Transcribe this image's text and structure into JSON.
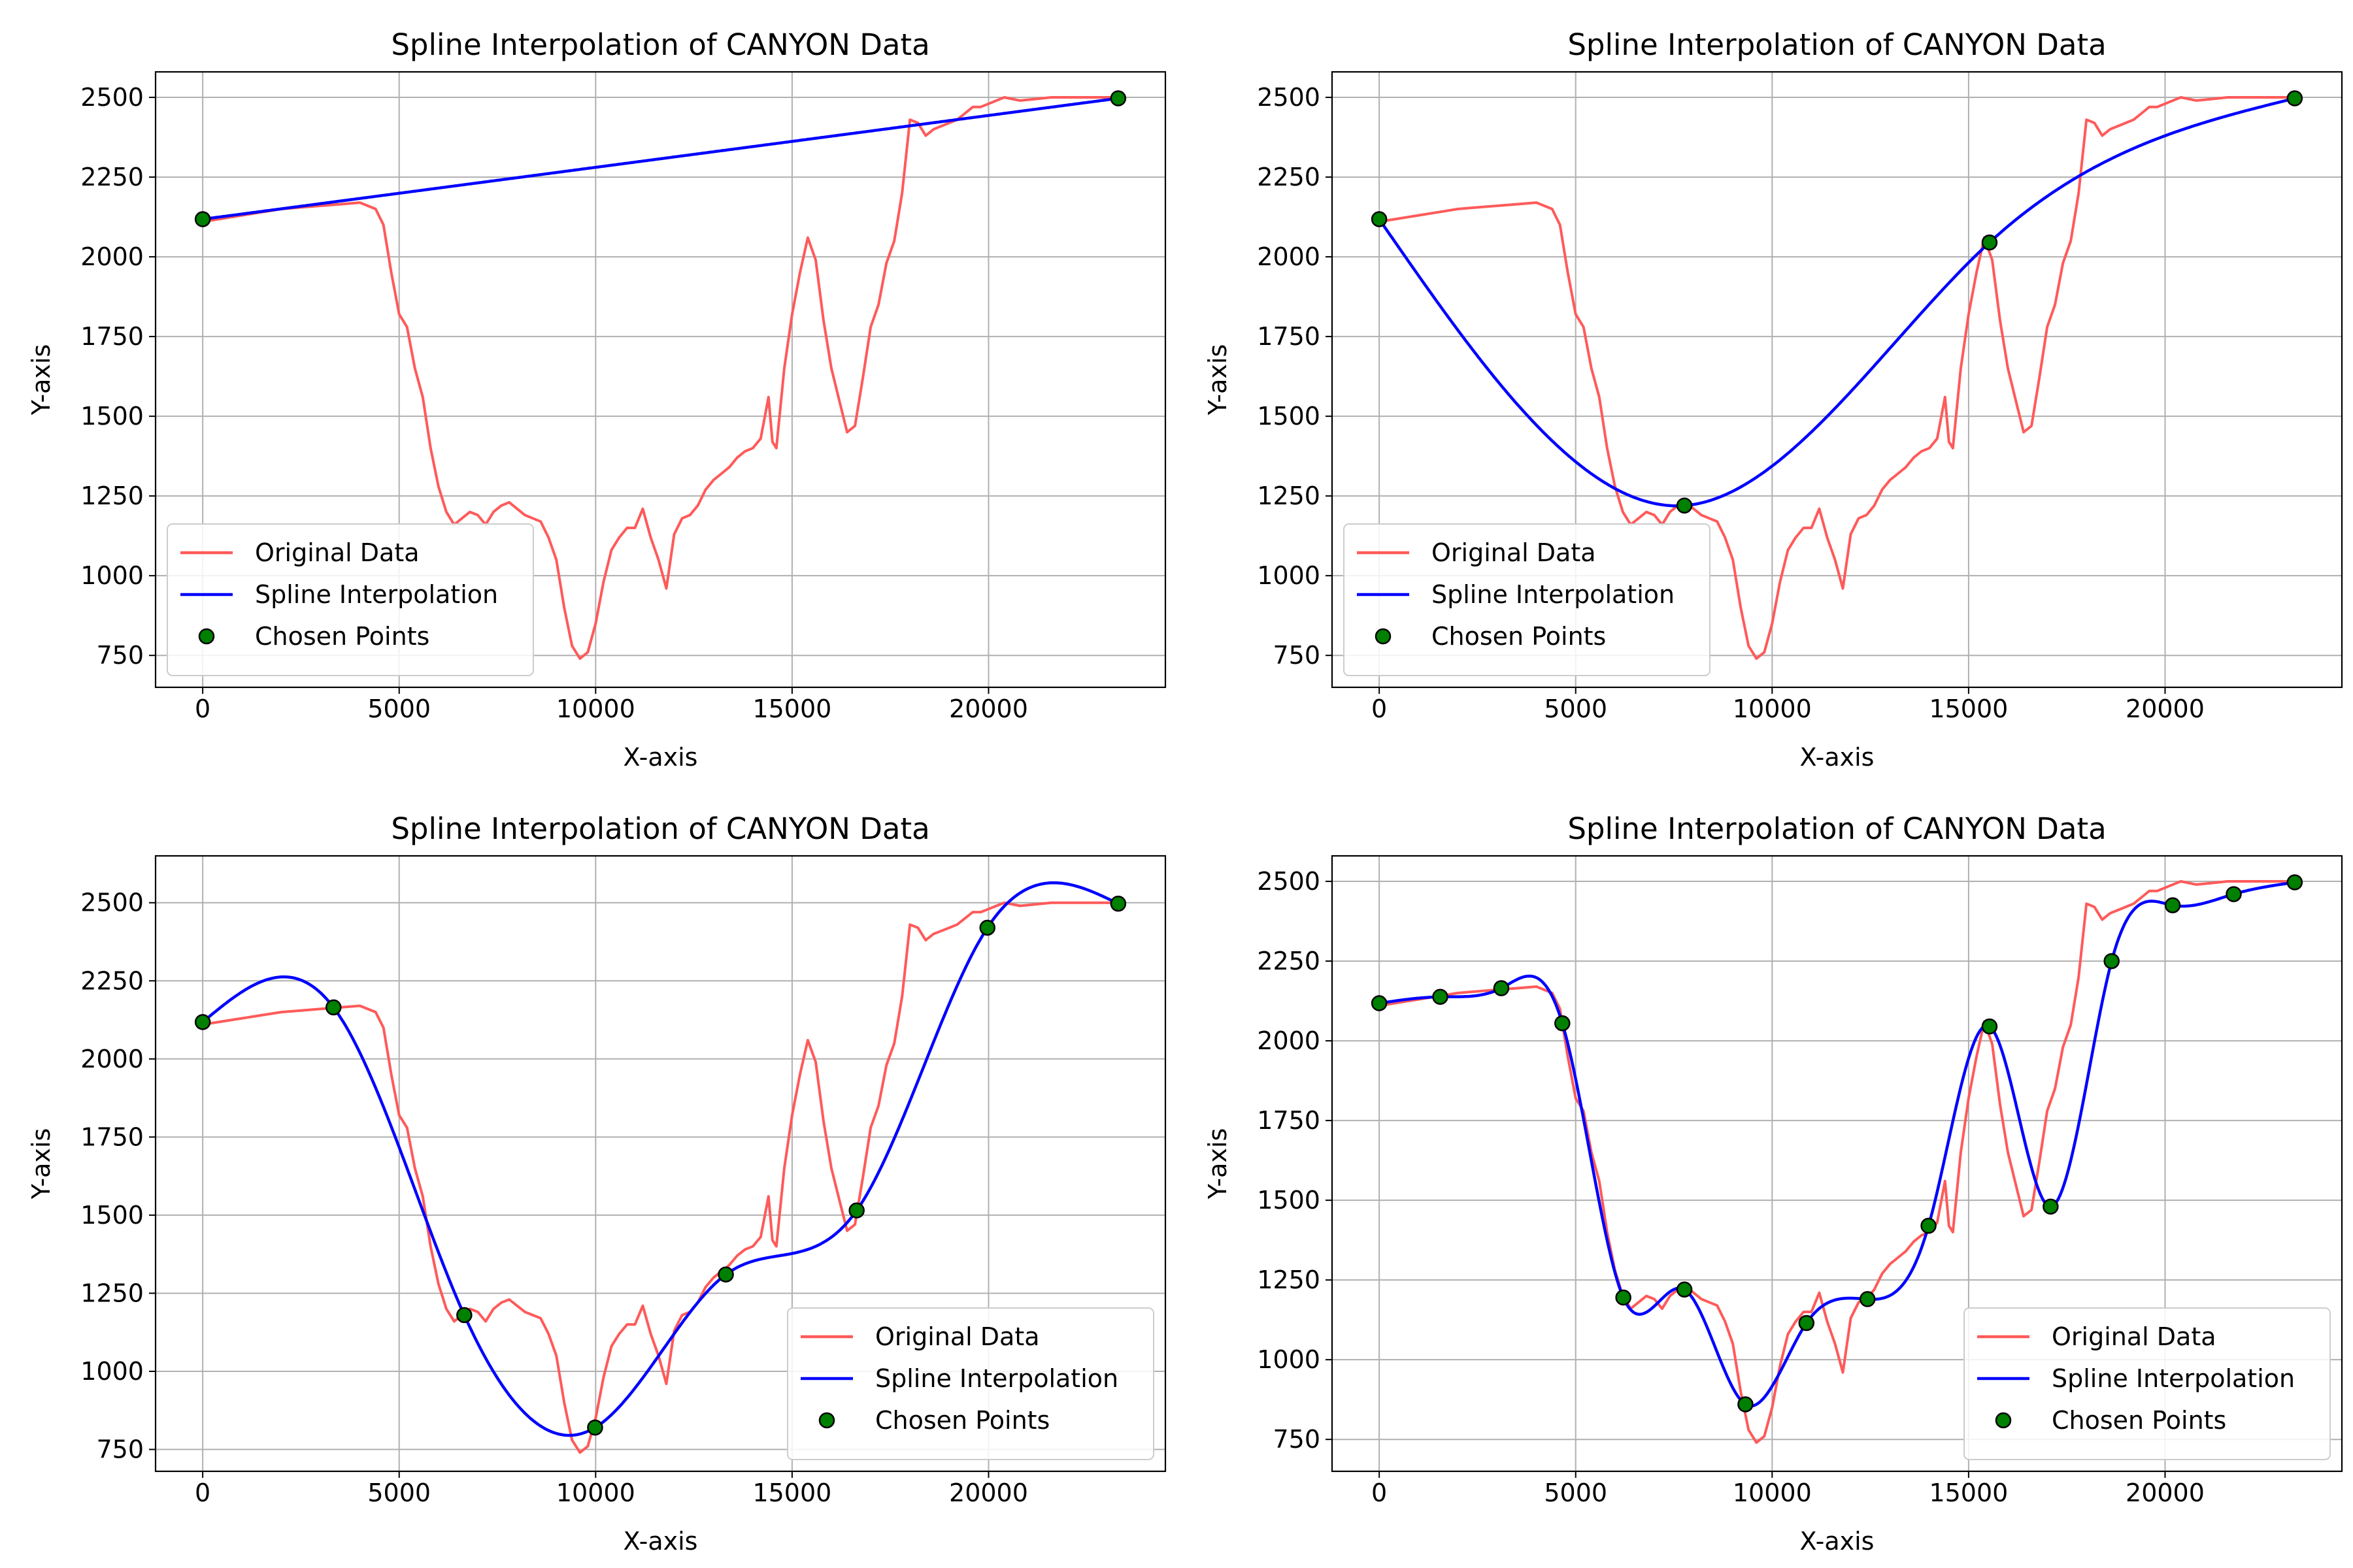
{
  "figure_title": "",
  "colors": {
    "original": "#ff5a5a",
    "spline": "#0000ff",
    "points_fill": "#008000",
    "points_edge": "#000000",
    "grid": "#b0b0b0"
  },
  "legend_labels": [
    "Original Data",
    "Spline Interpolation",
    "Chosen Points"
  ],
  "original_data": {
    "name": "Original Data",
    "x": [
      0,
      500,
      1000,
      1500,
      2000,
      2500,
      3000,
      3500,
      4000,
      4400,
      4600,
      4800,
      5000,
      5200,
      5400,
      5600,
      5800,
      6000,
      6200,
      6400,
      6600,
      6800,
      7000,
      7200,
      7400,
      7600,
      7800,
      8000,
      8200,
      8400,
      8600,
      8800,
      9000,
      9200,
      9400,
      9600,
      9800,
      10000,
      10200,
      10400,
      10600,
      10800,
      11000,
      11200,
      11400,
      11600,
      11800,
      12000,
      12200,
      12400,
      12600,
      12800,
      13000,
      13200,
      13400,
      13600,
      13800,
      14000,
      14200,
      14400,
      14500,
      14600,
      14800,
      15000,
      15200,
      15400,
      15600,
      15800,
      16000,
      16200,
      16400,
      16600,
      16800,
      17000,
      17200,
      17400,
      17600,
      17800,
      18000,
      18200,
      18400,
      18600,
      18800,
      19000,
      19200,
      19400,
      19600,
      19800,
      20000,
      20400,
      20800,
      21200,
      21600,
      22000,
      22400,
      22800,
      23300
    ],
    "y": [
      2110,
      2120,
      2130,
      2140,
      2150,
      2155,
      2160,
      2165,
      2170,
      2150,
      2100,
      1950,
      1820,
      1780,
      1650,
      1560,
      1400,
      1280,
      1200,
      1160,
      1180,
      1200,
      1190,
      1160,
      1200,
      1220,
      1230,
      1210,
      1190,
      1180,
      1170,
      1120,
      1050,
      900,
      780,
      740,
      760,
      850,
      980,
      1080,
      1120,
      1150,
      1150,
      1210,
      1120,
      1050,
      960,
      1130,
      1180,
      1190,
      1220,
      1270,
      1300,
      1320,
      1340,
      1370,
      1390,
      1400,
      1430,
      1560,
      1420,
      1400,
      1650,
      1820,
      1950,
      2060,
      1990,
      1800,
      1650,
      1550,
      1450,
      1470,
      1620,
      1780,
      1850,
      1980,
      2050,
      2200,
      2430,
      2420,
      2380,
      2400,
      2410,
      2420,
      2430,
      2450,
      2470,
      2470,
      2480,
      2500,
      2490,
      2495,
      2500,
      2500,
      2500,
      2500,
      2500
    ]
  },
  "chart_data": [
    {
      "type": "line",
      "title": "Spline Interpolation of CANYON Data",
      "xlabel": "X-axis",
      "ylabel": "Y-axis",
      "xlim": [
        -1200,
        24500
      ],
      "ylim": [
        650,
        2580
      ],
      "xticks": [
        0,
        5000,
        10000,
        15000,
        20000
      ],
      "yticks": [
        750,
        1000,
        1250,
        1500,
        1750,
        2000,
        2250,
        2500
      ],
      "grid": true,
      "legend": "lower left",
      "chosen_points": {
        "name": "Chosen Points",
        "x": [
          0,
          23300
        ],
        "y": [
          2118,
          2497
        ]
      }
    },
    {
      "type": "line",
      "title": "Spline Interpolation of CANYON Data",
      "xlabel": "X-axis",
      "ylabel": "Y-axis",
      "xlim": [
        -1200,
        24500
      ],
      "ylim": [
        650,
        2580
      ],
      "xticks": [
        0,
        5000,
        10000,
        15000,
        20000
      ],
      "yticks": [
        750,
        1000,
        1250,
        1500,
        1750,
        2000,
        2250,
        2500
      ],
      "grid": true,
      "legend": "lower left",
      "chosen_points": {
        "name": "Chosen Points",
        "x": [
          0,
          7767,
          15533,
          23300
        ],
        "y": [
          2118,
          1220,
          2045,
          2497
        ]
      }
    },
    {
      "type": "line",
      "title": "Spline Interpolation of CANYON Data",
      "xlabel": "X-axis",
      "ylabel": "Y-axis",
      "xlim": [
        -1200,
        24500
      ],
      "ylim": [
        680,
        2650
      ],
      "xticks": [
        0,
        5000,
        10000,
        15000,
        20000
      ],
      "yticks": [
        750,
        1000,
        1250,
        1500,
        1750,
        2000,
        2250,
        2500
      ],
      "grid": true,
      "legend": "lower right",
      "chosen_points": {
        "name": "Chosen Points",
        "x": [
          0,
          3329,
          6657,
          9986,
          13314,
          16643,
          19971,
          23300
        ],
        "y": [
          2118,
          2165,
          1180,
          820,
          1310,
          1515,
          2420,
          2497
        ]
      }
    },
    {
      "type": "line",
      "title": "Spline Interpolation of CANYON Data",
      "xlabel": "X-axis",
      "ylabel": "Y-axis",
      "xlim": [
        -1200,
        24500
      ],
      "ylim": [
        650,
        2580
      ],
      "xticks": [
        0,
        5000,
        10000,
        15000,
        20000
      ],
      "yticks": [
        750,
        1000,
        1250,
        1500,
        1750,
        2000,
        2250,
        2500
      ],
      "grid": true,
      "legend": "lower right",
      "chosen_points": {
        "name": "Chosen Points",
        "x": [
          0,
          1553,
          3107,
          4660,
          6213,
          7767,
          9320,
          10873,
          12427,
          13980,
          15533,
          17087,
          18640,
          20193,
          21747,
          23300
        ],
        "y": [
          2118,
          2138,
          2165,
          2055,
          1195,
          1220,
          860,
          1115,
          1190,
          1420,
          2045,
          1480,
          2250,
          2425,
          2460,
          2497
        ]
      }
    }
  ]
}
